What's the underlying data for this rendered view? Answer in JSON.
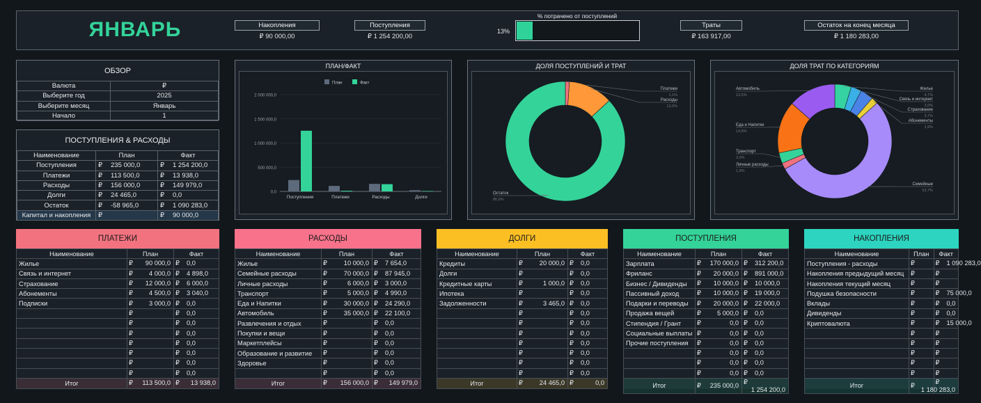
{
  "header": {
    "month": "ЯНВАРЬ",
    "savings_label": "Накопления",
    "savings_value": "₽ 90 000,00",
    "income_label": "Поступления",
    "income_value": "₽ 1 254 200,00",
    "spent_caption": "% потрачено от поступлений",
    "spent_pct_text": "13%",
    "spent_pct": 0.13,
    "expenses_label": "Траты",
    "expenses_value": "₽ 163 917,00",
    "balance_label": "Остаток на конец месяца",
    "balance_value": "₽ 1 180 283,00"
  },
  "overview": {
    "title": "ОБЗОР",
    "rows": [
      {
        "label": "Валюта",
        "value": "₽"
      },
      {
        "label": "Выберите год",
        "value": "2025"
      },
      {
        "label": "Выберите месяц",
        "value": "Январь"
      },
      {
        "label": "Начало",
        "value": "1"
      }
    ]
  },
  "flows": {
    "title": "ПОСТУПЛЕНИЯ & РАСХОДЫ",
    "col_name": "Наименование",
    "col_plan": "План",
    "col_fact": "Факт",
    "currency": "₽",
    "rows": [
      {
        "name": "Поступления",
        "plan": "235 000,0",
        "fact": "1 254 200,0"
      },
      {
        "name": "Платежи",
        "plan": "113 500,0",
        "fact": "13 938,0"
      },
      {
        "name": "Расходы",
        "plan": "156 000,0",
        "fact": "149 979,0"
      },
      {
        "name": "Долги",
        "plan": "24 465,0",
        "fact": "0,0"
      },
      {
        "name": "Остаток",
        "plan": "-58 965,0",
        "fact": "1 090 283,0"
      },
      {
        "name": "Капитал и накопления",
        "plan": "",
        "fact": "90 000,0"
      }
    ]
  },
  "charts": {
    "planfact_title": "ПЛАН/ФАКТ",
    "share_title": "ДОЛЯ ПОСТУПЛЕНИЙ И ТРАТ",
    "category_title": "ДОЛЯ ТРАТ ПО КАТЕГОРИЯМ"
  },
  "chart_data": [
    {
      "type": "bar",
      "title": "ПЛАН/ФАКТ",
      "categories": [
        "Поступления",
        "Платежи",
        "Расходы",
        "Долги"
      ],
      "series": [
        {
          "name": "План",
          "color": "#5d6a7c",
          "values": [
            235000,
            113500,
            156000,
            24465
          ]
        },
        {
          "name": "Факт",
          "color": "#33d39a",
          "values": [
            1254200,
            13938,
            149979,
            0
          ]
        }
      ],
      "yticks": [
        "2 000 000,0",
        "1 500 000,0",
        "1 000 000,0",
        "500 000,0",
        "0,0"
      ],
      "ylim": [
        0,
        2000000
      ],
      "legend": "top-center"
    },
    {
      "type": "pie",
      "title": "ДОЛЯ ПОСТУПЛЕНИЙ И ТРАТ",
      "slices": [
        {
          "name": "Платежи",
          "pct": "1,1%",
          "value": 1.1,
          "color": "#f0727f"
        },
        {
          "name": "Расходы",
          "pct": "12,0%",
          "value": 12.0,
          "color": "#ff9838"
        },
        {
          "name": "Остаток",
          "pct": "86,9%",
          "value": 86.9,
          "color": "#34d399"
        }
      ]
    },
    {
      "type": "pie",
      "title": "ДОЛЯ ТРАТ ПО КАТЕГОРИЯМ",
      "slices": [
        {
          "name": "Жилье",
          "pct": "4,7%",
          "value": 4.7,
          "color": "#34d3a1"
        },
        {
          "name": "Связь и интернет",
          "pct": "3,0%",
          "value": 3.0,
          "color": "#3ab0e6"
        },
        {
          "name": "Страхование",
          "pct": "3,7%",
          "value": 3.7,
          "color": "#4a83e6"
        },
        {
          "name": "Абонементы",
          "pct": "1,9%",
          "value": 1.9,
          "color": "#e8cf38"
        },
        {
          "name": "Семейные",
          "pct": "53,7%",
          "value": 53.7,
          "color": "#a78bfa"
        },
        {
          "name": "Личные расходы",
          "pct": "1,8%",
          "value": 1.8,
          "color": "#f0727f"
        },
        {
          "name": "Транспорт",
          "pct": "3,0%",
          "value": 3.0,
          "color": "#34d399"
        },
        {
          "name": "Еда и Напитки",
          "pct": "14,8%",
          "value": 14.8,
          "color": "#f97316"
        },
        {
          "name": "Автомобиль",
          "pct": "13,5%",
          "value": 13.5,
          "color": "#9a5cf0"
        }
      ]
    }
  ],
  "categories": {
    "col_name": "Наименование",
    "col_plan": "План",
    "col_fact": "Факт",
    "currency": "₽",
    "total_label": "Итог",
    "payments": {
      "title": "ПЛАТЕЖИ",
      "color": "#f2727f",
      "rows": [
        {
          "name": "Жилье",
          "plan": "90 000,0",
          "fact": "0,0"
        },
        {
          "name": "Связь и интернет",
          "plan": "4 000,0",
          "fact": "4 898,0"
        },
        {
          "name": "Страхование",
          "plan": "12 000,0",
          "fact": "6 000,0"
        },
        {
          "name": "Абонементы",
          "plan": "4 500,0",
          "fact": "3 040,0"
        },
        {
          "name": "Подписки",
          "plan": "3 000,0",
          "fact": "0,0"
        },
        {
          "name": "",
          "plan": "",
          "fact": "0,0"
        },
        {
          "name": "",
          "plan": "",
          "fact": "0,0"
        },
        {
          "name": "",
          "plan": "",
          "fact": "0,0"
        },
        {
          "name": "",
          "plan": "",
          "fact": "0,0"
        },
        {
          "name": "",
          "plan": "",
          "fact": "0,0"
        },
        {
          "name": "",
          "plan": "",
          "fact": "0,0"
        },
        {
          "name": "",
          "plan": "",
          "fact": "0,0"
        }
      ],
      "total_plan": "113 500,0",
      "total_fact": "13 938,0"
    },
    "expenses": {
      "title": "РАСХОДЫ",
      "color": "#f7728a",
      "rows": [
        {
          "name": "Жилье",
          "plan": "10 000,0",
          "fact": "7 654,0"
        },
        {
          "name": "Семейные расходы",
          "plan": "70 000,0",
          "fact": "87 945,0"
        },
        {
          "name": "Личные расходы",
          "plan": "6 000,0",
          "fact": "3 000,0"
        },
        {
          "name": "Транспорт",
          "plan": "5 000,0",
          "fact": "4 990,0"
        },
        {
          "name": "Еда и Напитки",
          "plan": "30 000,0",
          "fact": "24 290,0"
        },
        {
          "name": "Автомобиль",
          "plan": "35 000,0",
          "fact": "22 100,0"
        },
        {
          "name": "Развлечения и отдых",
          "plan": "",
          "fact": "0,0"
        },
        {
          "name": "Покупки и вещи",
          "plan": "",
          "fact": "0,0"
        },
        {
          "name": "Маркетплейсы",
          "plan": "",
          "fact": "0,0"
        },
        {
          "name": "Образование и развитие",
          "plan": "",
          "fact": "0,0"
        },
        {
          "name": "Здоровье",
          "plan": "",
          "fact": "0,0"
        },
        {
          "name": "",
          "plan": "",
          "fact": "0,0"
        }
      ],
      "total_plan": "156 000,0",
      "total_fact": "149 979,0"
    },
    "debts": {
      "title": "ДОЛГИ",
      "color": "#fbbf24",
      "rows": [
        {
          "name": "Кредиты",
          "plan": "20 000,0",
          "fact": "0,0"
        },
        {
          "name": "Долги",
          "plan": "",
          "fact": "0,0"
        },
        {
          "name": "Кредитные карты",
          "plan": "1 000,0",
          "fact": "0,0"
        },
        {
          "name": "Ипотека",
          "plan": "",
          "fact": "0,0"
        },
        {
          "name": "Задолженности",
          "plan": "3 465,0",
          "fact": "0,0"
        },
        {
          "name": "",
          "plan": "",
          "fact": "0,0"
        },
        {
          "name": "",
          "plan": "",
          "fact": "0,0"
        },
        {
          "name": "",
          "plan": "",
          "fact": "0,0"
        },
        {
          "name": "",
          "plan": "",
          "fact": "0,0"
        },
        {
          "name": "",
          "plan": "",
          "fact": "0,0"
        },
        {
          "name": "",
          "plan": "",
          "fact": "0,0"
        },
        {
          "name": "",
          "plan": "",
          "fact": "0,0"
        }
      ],
      "total_plan": "24 465,0",
      "total_fact": "0,0"
    },
    "income": {
      "title": "ПОСТУПЛЕНИЯ",
      "color": "#34d399",
      "rows": [
        {
          "name": "Зарплата",
          "plan": "170 000,0",
          "fact": "312 200,0"
        },
        {
          "name": "Фриланс",
          "plan": "20 000,0",
          "fact": "891 000,0"
        },
        {
          "name": "Бизнес / Дивиденды",
          "plan": "10 000,0",
          "fact": "10 000,0"
        },
        {
          "name": "Пассивный доход",
          "plan": "10 000,0",
          "fact": "19 000,0"
        },
        {
          "name": "Подарки и переводы",
          "plan": "20 000,0",
          "fact": "22 000,0"
        },
        {
          "name": "Продажа вещей",
          "plan": "5 000,0",
          "fact": "0,0"
        },
        {
          "name": "Стипендия / Грант",
          "plan": "0,0",
          "fact": "0,0"
        },
        {
          "name": "Социальные выплаты",
          "plan": "0,0",
          "fact": "0,0"
        },
        {
          "name": "Прочие поступления",
          "plan": "0,0",
          "fact": "0,0"
        },
        {
          "name": "",
          "plan": "0,0",
          "fact": "0,0"
        },
        {
          "name": "",
          "plan": "0,0",
          "fact": "0,0"
        },
        {
          "name": "",
          "plan": "0,0",
          "fact": "0,0"
        }
      ],
      "total_plan": "235 000,0",
      "total_fact": "1 254 200,0"
    },
    "savings": {
      "title": "НАКОПЛЕНИЯ",
      "color": "#2dd4bf",
      "rows": [
        {
          "name": "Поступления - расходы",
          "fact": "1 090 283,0"
        },
        {
          "name": "Накопления предыдущий месяц",
          "fact": ""
        },
        {
          "name": "Накопления текущий месяц",
          "fact": ""
        },
        {
          "name": "Подушка безопасности",
          "fact": "75 000,0"
        },
        {
          "name": "Вклады",
          "fact": "0,0"
        },
        {
          "name": "Дивиденды",
          "fact": "0,0"
        },
        {
          "name": "Криптовалюта",
          "fact": "15 000,0"
        },
        {
          "name": "",
          "fact": ""
        },
        {
          "name": "",
          "fact": ""
        },
        {
          "name": "",
          "fact": ""
        },
        {
          "name": "",
          "fact": ""
        },
        {
          "name": "",
          "fact": ""
        }
      ],
      "total_fact": "1 180 283,0"
    }
  }
}
